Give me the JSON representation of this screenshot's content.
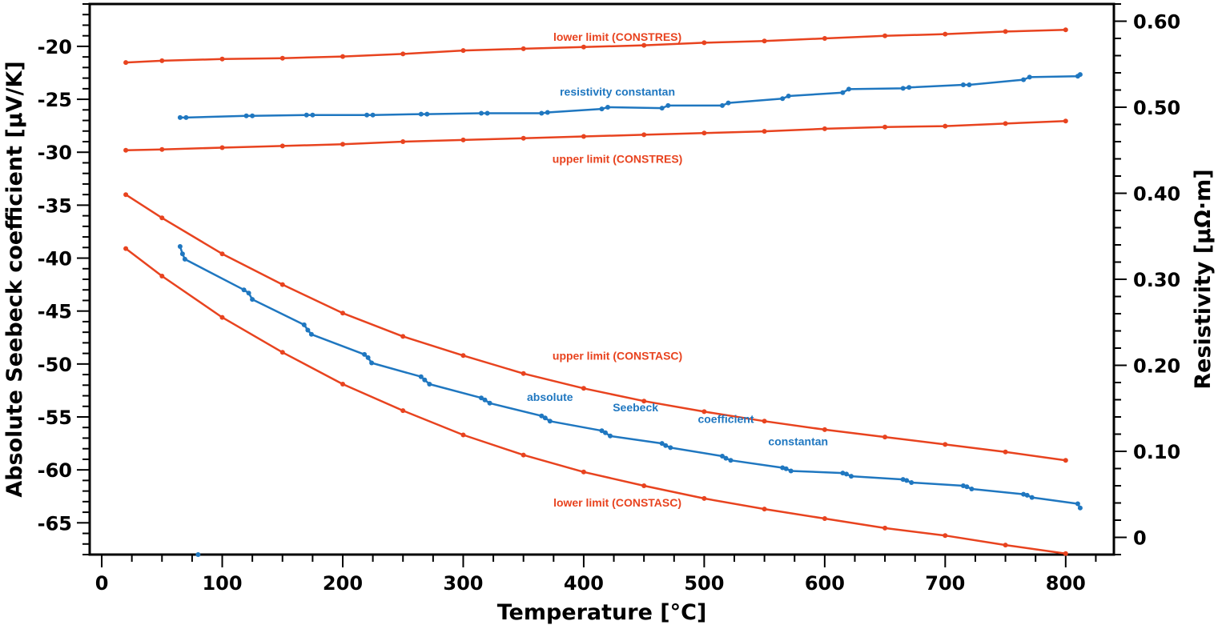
{
  "chart_data": {
    "type": "line",
    "xlabel": "Temperature [°C]",
    "ylabel": "Absolute Seebeck coefficient [µV/K]",
    "y2label": "Resistivity [µΩ·m]",
    "xlim": [
      -10,
      840
    ],
    "ylim": [
      -68,
      -16
    ],
    "y2lim": [
      -0.02,
      0.62
    ],
    "x_ticks": [
      "0",
      "100",
      "200",
      "300",
      "400",
      "500",
      "600",
      "700",
      "800"
    ],
    "y_ticks": [
      "-20",
      "-25",
      "-30",
      "-35",
      "-40",
      "-45",
      "-50",
      "-55",
      "-60",
      "-65"
    ],
    "y2_ticks": [
      "0",
      "0.10",
      "0.20",
      "0.30",
      "0.40",
      "0.50",
      "0.60"
    ],
    "colors": {
      "limit": "#e8431f",
      "measured": "#1f77c0",
      "axis": "#000000"
    },
    "series": [
      {
        "name": "lower limit (CONSTRES)",
        "axis": "right",
        "color": "#e8431f",
        "x": [
          20,
          50,
          100,
          150,
          200,
          250,
          300,
          350,
          400,
          450,
          500,
          550,
          600,
          650,
          700,
          750,
          800
        ],
        "y": [
          0.552,
          0.554,
          0.556,
          0.557,
          0.559,
          0.562,
          0.566,
          0.568,
          0.57,
          0.572,
          0.575,
          0.577,
          0.58,
          0.583,
          0.585,
          0.588,
          0.59
        ]
      },
      {
        "name": "resistivity constantan",
        "axis": "right",
        "color": "#1f77c0",
        "x": [
          65,
          70,
          120,
          125,
          170,
          175,
          220,
          225,
          265,
          270,
          315,
          320,
          365,
          370,
          415,
          420,
          465,
          470,
          515,
          520,
          565,
          570,
          615,
          620,
          665,
          670,
          715,
          720,
          765,
          770,
          810,
          812
        ],
        "y": [
          0.488,
          0.488,
          0.49,
          0.49,
          0.491,
          0.491,
          0.491,
          0.491,
          0.492,
          0.492,
          0.493,
          0.493,
          0.493,
          0.494,
          0.498,
          0.5,
          0.499,
          0.502,
          0.502,
          0.505,
          0.51,
          0.513,
          0.517,
          0.521,
          0.522,
          0.523,
          0.526,
          0.526,
          0.532,
          0.535,
          0.536,
          0.538
        ]
      },
      {
        "name": "upper limit (CONSTRES)",
        "axis": "right",
        "color": "#e8431f",
        "x": [
          20,
          50,
          100,
          150,
          200,
          250,
          300,
          350,
          400,
          450,
          500,
          550,
          600,
          650,
          700,
          750,
          800
        ],
        "y": [
          0.45,
          0.451,
          0.453,
          0.455,
          0.457,
          0.46,
          0.462,
          0.464,
          0.466,
          0.468,
          0.47,
          0.472,
          0.475,
          0.477,
          0.478,
          0.481,
          0.484
        ]
      },
      {
        "name": "upper limit (CONSTASC)",
        "axis": "left",
        "color": "#e8431f",
        "x": [
          20,
          50,
          100,
          150,
          200,
          250,
          300,
          350,
          400,
          450,
          500,
          550,
          600,
          650,
          700,
          750,
          800
        ],
        "y": [
          -34.0,
          -36.2,
          -39.6,
          -42.5,
          -45.2,
          -47.4,
          -49.2,
          -50.9,
          -52.3,
          -53.5,
          -54.5,
          -55.4,
          -56.2,
          -56.9,
          -57.6,
          -58.3,
          -59.1
        ]
      },
      {
        "name": "absolute Seebeck coefficient constantan",
        "axis": "left",
        "color": "#1f77c0",
        "x": [
          65,
          67,
          69,
          118,
          122,
          125,
          168,
          171,
          174,
          218,
          221,
          224,
          265,
          268,
          272,
          315,
          318,
          322,
          365,
          368,
          372,
          415,
          418,
          422,
          465,
          468,
          472,
          515,
          518,
          522,
          565,
          568,
          572,
          615,
          618,
          622,
          665,
          668,
          672,
          715,
          718,
          722,
          765,
          768,
          772,
          810,
          812
        ],
        "y": [
          -38.9,
          -39.6,
          -40.1,
          -43.0,
          -43.3,
          -43.9,
          -46.3,
          -46.8,
          -47.2,
          -49.1,
          -49.4,
          -49.9,
          -51.2,
          -51.5,
          -51.9,
          -53.2,
          -53.4,
          -53.7,
          -54.9,
          -55.1,
          -55.4,
          -56.3,
          -56.5,
          -56.8,
          -57.5,
          -57.7,
          -57.9,
          -58.7,
          -58.9,
          -59.1,
          -59.8,
          -59.9,
          -60.1,
          -60.3,
          -60.4,
          -60.6,
          -60.9,
          -61.0,
          -61.2,
          -61.5,
          -61.6,
          -61.8,
          -62.3,
          -62.4,
          -62.6,
          -63.2,
          -63.6
        ]
      },
      {
        "name": "lower limit (CONSTASC)",
        "axis": "left",
        "color": "#e8431f",
        "x": [
          20,
          50,
          100,
          150,
          200,
          250,
          300,
          350,
          400,
          450,
          500,
          550,
          600,
          650,
          700,
          750,
          800
        ],
        "y": [
          -39.1,
          -41.7,
          -45.6,
          -48.9,
          -51.9,
          -54.4,
          -56.7,
          -58.6,
          -60.2,
          -61.5,
          -62.7,
          -63.7,
          -64.6,
          -65.5,
          -66.2,
          -67.1,
          -67.9
        ]
      },
      {
        "name": "outlier",
        "axis": "left",
        "color": "#1f77c0",
        "x": [
          80
        ],
        "y": [
          -68.0
        ]
      }
    ],
    "annotations": [
      {
        "text": "lower limit (CONSTRES)",
        "x": 428,
        "y": 0.582,
        "axis": "right",
        "color": "#e8431f"
      },
      {
        "text": "resistivity constantan",
        "x": 428,
        "y": 0.518,
        "axis": "right",
        "color": "#1f77c0"
      },
      {
        "text": "upper limit (CONSTRES)",
        "x": 428,
        "y": 0.44,
        "axis": "right",
        "color": "#e8431f"
      },
      {
        "text": "upper limit (CONSTASC)",
        "x": 428,
        "y": -49.2,
        "axis": "left",
        "color": "#e8431f"
      },
      {
        "text": "absolute",
        "x": 372,
        "y": -53.1,
        "axis": "left",
        "color": "#1f77c0"
      },
      {
        "text": "Seebeck",
        "x": 443,
        "y": -54.1,
        "axis": "left",
        "color": "#1f77c0"
      },
      {
        "text": "coefficient",
        "x": 518,
        "y": -55.2,
        "axis": "left",
        "color": "#1f77c0"
      },
      {
        "text": "constantan",
        "x": 578,
        "y": -57.3,
        "axis": "left",
        "color": "#1f77c0"
      },
      {
        "text": "lower limit (CONSTASC)",
        "x": 428,
        "y": -63.1,
        "axis": "left",
        "color": "#e8431f"
      }
    ]
  }
}
